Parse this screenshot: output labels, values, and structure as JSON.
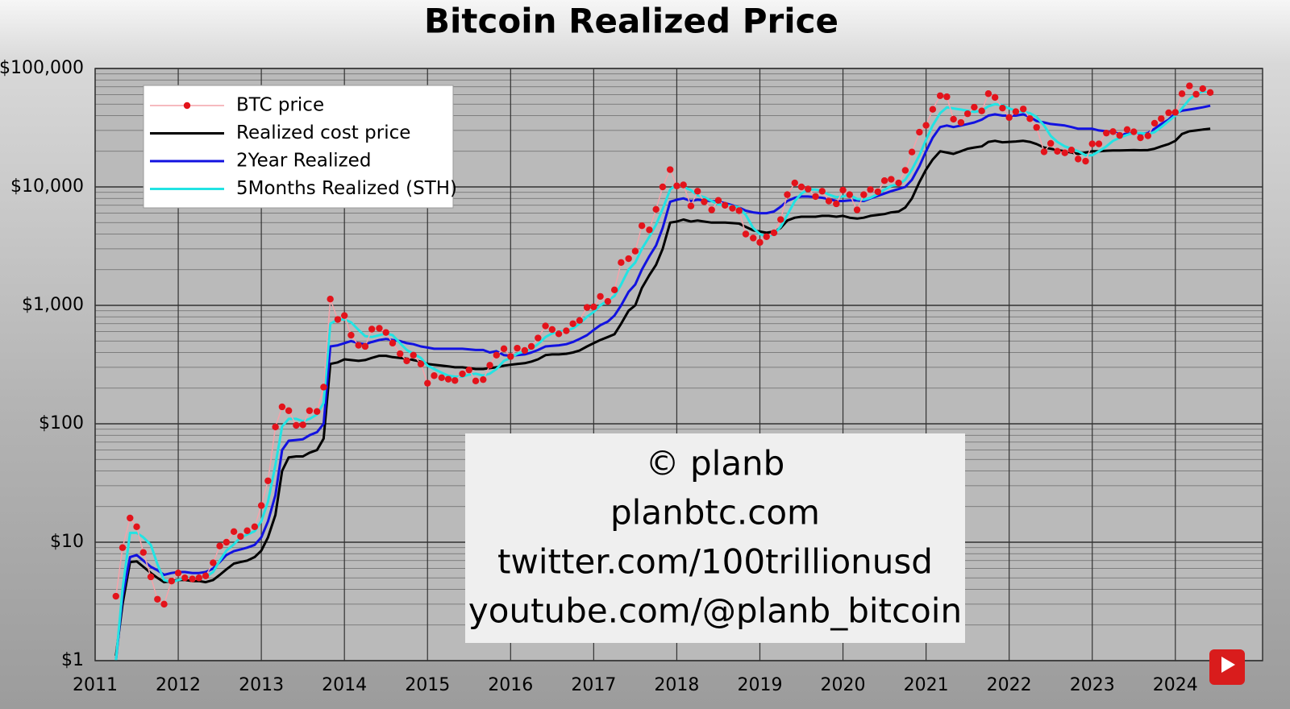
{
  "chart_data": {
    "type": "line",
    "title": "Bitcoin Realized Price",
    "log_y": true,
    "grid": true,
    "minor_grid": true,
    "legend": "upper left",
    "xlim": [
      2011,
      2025.05
    ],
    "xticks": [
      2011,
      2012,
      2013,
      2014,
      2015,
      2016,
      2017,
      2018,
      2019,
      2020,
      2021,
      2022,
      2023,
      2024
    ],
    "ylim": [
      1,
      100000
    ],
    "yticks": [
      {
        "value": 1,
        "label": "$1"
      },
      {
        "value": 10,
        "label": "$10"
      },
      {
        "value": 100,
        "label": "$100"
      },
      {
        "value": 1000,
        "label": "$1,000"
      },
      {
        "value": 10000,
        "label": "$10,000"
      },
      {
        "value": 100000,
        "label": "$100,000"
      }
    ],
    "annotations": [
      "© planb",
      "planbtc.com",
      "twitter.com/100trillionusd",
      "youtube.com/@planb_bitcoin"
    ],
    "x": [
      2011.25,
      2011.33,
      2011.42,
      2011.5,
      2011.58,
      2011.67,
      2011.75,
      2011.83,
      2011.92,
      2012,
      2012.08,
      2012.17,
      2012.25,
      2012.33,
      2012.42,
      2012.5,
      2012.58,
      2012.67,
      2012.75,
      2012.83,
      2012.92,
      2013,
      2013.08,
      2013.17,
      2013.25,
      2013.33,
      2013.42,
      2013.5,
      2013.58,
      2013.67,
      2013.75,
      2013.83,
      2013.92,
      2014,
      2014.08,
      2014.17,
      2014.25,
      2014.33,
      2014.42,
      2014.5,
      2014.58,
      2014.67,
      2014.75,
      2014.83,
      2014.92,
      2015,
      2015.08,
      2015.17,
      2015.25,
      2015.33,
      2015.42,
      2015.5,
      2015.58,
      2015.67,
      2015.75,
      2015.83,
      2015.92,
      2016,
      2016.08,
      2016.17,
      2016.25,
      2016.33,
      2016.42,
      2016.5,
      2016.58,
      2016.67,
      2016.75,
      2016.83,
      2016.92,
      2017,
      2017.08,
      2017.17,
      2017.25,
      2017.33,
      2017.42,
      2017.5,
      2017.58,
      2017.67,
      2017.75,
      2017.83,
      2017.92,
      2018,
      2018.08,
      2018.17,
      2018.25,
      2018.33,
      2018.42,
      2018.5,
      2018.58,
      2018.67,
      2018.75,
      2018.83,
      2018.92,
      2019,
      2019.08,
      2019.17,
      2019.25,
      2019.33,
      2019.42,
      2019.5,
      2019.58,
      2019.67,
      2019.75,
      2019.83,
      2019.92,
      2020,
      2020.08,
      2020.17,
      2020.25,
      2020.33,
      2020.42,
      2020.5,
      2020.58,
      2020.67,
      2020.75,
      2020.83,
      2020.92,
      2021,
      2021.08,
      2021.17,
      2021.25,
      2021.33,
      2021.42,
      2021.5,
      2021.58,
      2021.67,
      2021.75,
      2021.83,
      2021.92,
      2022,
      2022.08,
      2022.17,
      2022.25,
      2022.33,
      2022.42,
      2022.5,
      2022.58,
      2022.67,
      2022.75,
      2022.83,
      2022.92,
      2023,
      2023.08,
      2023.17,
      2023.25,
      2023.33,
      2023.42,
      2023.5,
      2023.58,
      2023.67,
      2023.75,
      2023.83,
      2023.92,
      2024,
      2024.08,
      2024.17,
      2024.25,
      2024.33,
      2024.42
    ],
    "series": [
      {
        "name": "BTC price",
        "color": "#e3131b",
        "line_color": "#f4a3aa",
        "marker": "circle",
        "values": [
          3.5,
          9,
          16,
          13.5,
          8.2,
          5.1,
          3.3,
          3,
          4.7,
          5.5,
          5,
          4.9,
          5,
          5.2,
          6.7,
          9.3,
          10,
          12.3,
          11.2,
          12.5,
          13.5,
          20.4,
          33,
          94,
          139,
          129,
          97,
          98,
          129,
          127,
          204,
          1130,
          760,
          820,
          560,
          460,
          450,
          630,
          640,
          590,
          480,
          390,
          340,
          380,
          320,
          220,
          255,
          245,
          238,
          232,
          264,
          285,
          230,
          236,
          312,
          380,
          430,
          370,
          435,
          416,
          450,
          530,
          670,
          625,
          575,
          610,
          700,
          745,
          960,
          970,
          1190,
          1080,
          1350,
          2300,
          2480,
          2870,
          4700,
          4340,
          6470,
          10000,
          14000,
          10200,
          10400,
          6900,
          9200,
          7500,
          6400,
          7700,
          7000,
          6600,
          6300,
          4000,
          3700,
          3400,
          3800,
          4100,
          5300,
          8600,
          10800,
          10000,
          9600,
          8300,
          9200,
          7600,
          7200,
          9400,
          8600,
          6400,
          8600,
          9500,
          9100,
          11300,
          11600,
          10800,
          13800,
          19700,
          29000,
          33100,
          45200,
          58900,
          57700,
          37300,
          35000,
          41500,
          47100,
          43800,
          61300,
          57000,
          46300,
          38500,
          43200,
          45500,
          37700,
          31800,
          19800,
          23300,
          20000,
          19400,
          20500,
          17200,
          16500,
          23100,
          23100,
          28500,
          29300,
          27200,
          30500,
          29200,
          26000,
          27000,
          34500,
          37700,
          42300,
          42600,
          61200,
          71300,
          60600,
          67500,
          62700
        ]
      },
      {
        "name": "Realized cost price",
        "color": "#000000",
        "values": [
          1.1,
          3,
          6.8,
          6.9,
          6.2,
          5.5,
          5,
          4.6,
          4.7,
          4.8,
          4.8,
          4.7,
          4.7,
          4.6,
          4.8,
          5.3,
          5.9,
          6.6,
          6.8,
          7,
          7.5,
          8.5,
          11,
          17,
          40,
          52,
          53,
          53,
          57,
          60,
          75,
          320,
          330,
          350,
          345,
          340,
          345,
          360,
          375,
          375,
          365,
          360,
          355,
          345,
          335,
          320,
          315,
          310,
          305,
          300,
          300,
          295,
          290,
          290,
          295,
          300,
          310,
          315,
          320,
          325,
          335,
          350,
          380,
          385,
          385,
          390,
          400,
          415,
          450,
          480,
          510,
          540,
          570,
          700,
          900,
          1000,
          1400,
          1800,
          2200,
          3000,
          5000,
          5100,
          5300,
          5100,
          5200,
          5100,
          5000,
          5000,
          5000,
          4950,
          4900,
          4600,
          4300,
          4200,
          4100,
          4200,
          4500,
          5200,
          5500,
          5600,
          5600,
          5600,
          5700,
          5700,
          5600,
          5700,
          5500,
          5400,
          5500,
          5700,
          5800,
          5900,
          6100,
          6200,
          6700,
          8000,
          11000,
          14000,
          17000,
          20000,
          19500,
          19000,
          20000,
          21000,
          21500,
          22000,
          24000,
          24500,
          23800,
          24000,
          24200,
          24500,
          24000,
          23000,
          21500,
          21000,
          20500,
          20000,
          19500,
          19000,
          19500,
          20000,
          20000,
          20200,
          20300,
          20300,
          20400,
          20500,
          20400,
          20500,
          21000,
          22000,
          23000,
          24500,
          28000,
          29500,
          30000,
          30500,
          31000
        ]
      },
      {
        "name": "2Year Realized",
        "color": "#1212e0",
        "values": [
          1,
          3.5,
          7.5,
          7.8,
          7,
          6.2,
          5.8,
          5.3,
          5.5,
          5.6,
          5.6,
          5.5,
          5.5,
          5.6,
          6,
          6.8,
          7.8,
          8.4,
          8.7,
          9,
          9.5,
          11,
          15,
          25,
          60,
          72,
          73,
          74,
          80,
          85,
          100,
          450,
          460,
          480,
          500,
          480,
          470,
          490,
          510,
          520,
          510,
          500,
          480,
          470,
          450,
          440,
          430,
          430,
          430,
          430,
          430,
          425,
          420,
          420,
          400,
          410,
          380,
          375,
          380,
          385,
          400,
          420,
          450,
          455,
          460,
          470,
          490,
          520,
          560,
          620,
          680,
          730,
          820,
          1000,
          1300,
          1500,
          2000,
          2600,
          3200,
          4500,
          7500,
          7800,
          8000,
          7600,
          7800,
          7700,
          7600,
          7500,
          7300,
          7000,
          6700,
          6300,
          6100,
          6000,
          6000,
          6200,
          6800,
          7600,
          8100,
          8300,
          8300,
          8200,
          8100,
          7900,
          7600,
          7600,
          7700,
          7700,
          7600,
          8000,
          8400,
          8800,
          9200,
          9600,
          10000,
          11500,
          15000,
          20000,
          26000,
          32000,
          33000,
          32000,
          33000,
          34000,
          35000,
          37000,
          40000,
          41000,
          40000,
          40000,
          40000,
          41000,
          39000,
          36000,
          35000,
          34000,
          33500,
          33000,
          32000,
          31000,
          31000,
          31000,
          30000,
          29500,
          29000,
          28000,
          28000,
          28500,
          28000,
          28500,
          31000,
          34000,
          37000,
          42000,
          44000,
          45000,
          46000,
          47000,
          48500
        ]
      },
      {
        "name": "5Months Realized (STH)",
        "color": "#22e3e3",
        "values": [
          1,
          4,
          12,
          12,
          11,
          9.5,
          6.5,
          4.8,
          4.6,
          4.8,
          5,
          5,
          5,
          5.1,
          5.6,
          7,
          8.5,
          9.6,
          11,
          11.6,
          12.4,
          15,
          22,
          45,
          95,
          110,
          110,
          105,
          110,
          120,
          150,
          700,
          760,
          760,
          720,
          620,
          550,
          540,
          560,
          580,
          560,
          480,
          420,
          390,
          360,
          310,
          290,
          270,
          255,
          250,
          250,
          260,
          265,
          255,
          265,
          290,
          340,
          360,
          390,
          410,
          430,
          470,
          540,
          580,
          600,
          610,
          640,
          700,
          800,
          880,
          1000,
          1100,
          1200,
          1500,
          2000,
          2300,
          3000,
          3800,
          4800,
          6500,
          9500,
          10500,
          10000,
          9400,
          8500,
          8200,
          7600,
          7100,
          7000,
          6900,
          6700,
          5800,
          4500,
          4000,
          3800,
          4000,
          4600,
          5800,
          7600,
          8800,
          9500,
          9500,
          9200,
          8600,
          8200,
          8300,
          8600,
          7900,
          7800,
          8100,
          8700,
          9500,
          10200,
          10500,
          11500,
          14000,
          18500,
          25000,
          33000,
          42000,
          47000,
          46000,
          45000,
          44000,
          43000,
          44000,
          48000,
          50000,
          49000,
          46000,
          44000,
          43000,
          42000,
          39000,
          33000,
          27000,
          24000,
          22000,
          21000,
          20000,
          18500,
          18500,
          20000,
          22000,
          24500,
          26000,
          27500,
          28500,
          28500,
          28000,
          29000,
          32000,
          36000,
          40000,
          46000,
          55000,
          61000,
          64000,
          64000
        ]
      }
    ]
  }
}
